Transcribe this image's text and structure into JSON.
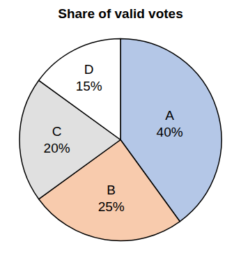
{
  "chart_data": {
    "type": "pie",
    "title": "Share of valid votes",
    "categories": [
      "A",
      "B",
      "C",
      "D"
    ],
    "values": [
      40,
      25,
      20,
      15
    ],
    "value_labels": [
      "40%",
      "25%",
      "20%",
      "15%"
    ],
    "colors": [
      "#b4c7e7",
      "#f8cbad",
      "#e0e0e0",
      "#ffffff"
    ],
    "data_labels": true
  }
}
